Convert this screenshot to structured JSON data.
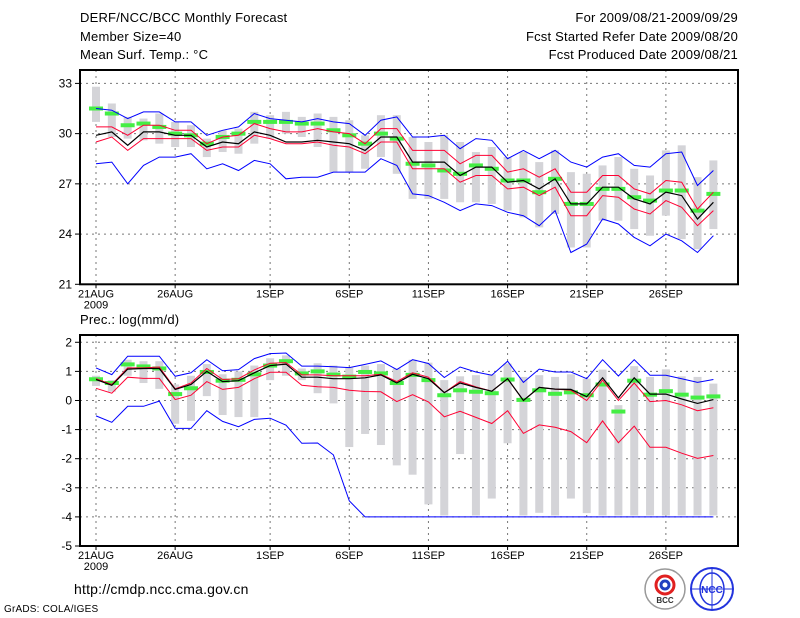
{
  "header": {
    "title": "DERF/NCC/BCC Monthly Forecast",
    "member_size": "Member Size=40",
    "variable": "Mean Surf. Temp.: °C",
    "period": "For 2009/08/21-2009/09/29",
    "started": "Fcst Started Refer Date 2009/08/20",
    "produced": "Fcst Produced Date 2009/08/21"
  },
  "footer": {
    "url": "http://cmdp.ncc.cma.gov.cn",
    "credit": "GrADS: COLA/IGES",
    "logo_bcc": "BCC",
    "logo_ncc": "NCC"
  },
  "colors": {
    "max_min": "#0000ff",
    "spread": "#ff0033",
    "mean": "#000000",
    "obs": "#44ee44",
    "box": "#d4d4d8"
  },
  "chart_data": [
    {
      "type": "line",
      "title": "Mean Surf. Temp.: °C",
      "ylabel": "",
      "ylim": [
        21,
        33
      ],
      "yticks": [
        "21",
        "24",
        "27",
        "30",
        "33"
      ],
      "ytick_values": [
        21,
        24,
        27,
        30,
        33
      ],
      "xtick_days": [
        0,
        5,
        11,
        16,
        21,
        26,
        31,
        36
      ],
      "xtick_labels": [
        "21AUG",
        "26AUG",
        "1SEP",
        "6SEP",
        "11SEP",
        "16SEP",
        "21SEP",
        "26SEP"
      ],
      "xyear": "2009",
      "n_days": 40,
      "grid": true,
      "series": [
        {
          "name": "box_low",
          "values": [
            30.7,
            29.8,
            29.7,
            29.6,
            29.4,
            29.2,
            29.2,
            28.6,
            28.9,
            28.8,
            29.4,
            29.7,
            30.0,
            29.8,
            29.2,
            27.7,
            27.7,
            27.9,
            28.6,
            27.6,
            26.1,
            26.1,
            26.1,
            25.9,
            25.9,
            25.8,
            25.4,
            25.0,
            24.4,
            25.2,
            23.2,
            23.2,
            24.8,
            24.8,
            24.3,
            23.9,
            25.1,
            23.7,
            23.1,
            24.3
          ]
        },
        {
          "name": "box_high",
          "values": [
            32.8,
            31.8,
            31.0,
            30.9,
            31.2,
            30.7,
            30.5,
            29.7,
            30.2,
            30.3,
            31.3,
            31.1,
            31.3,
            31.0,
            31.2,
            31.0,
            30.8,
            29.9,
            31.1,
            31.1,
            29.8,
            29.5,
            29.9,
            29.5,
            28.9,
            29.2,
            28.6,
            28.9,
            28.3,
            29.0,
            27.7,
            27.6,
            28.1,
            28.6,
            27.9,
            27.5,
            29.0,
            29.3,
            27.4,
            28.4
          ]
        },
        {
          "name": "max",
          "values": [
            31.5,
            31.4,
            30.9,
            31.3,
            31.3,
            30.7,
            30.7,
            29.9,
            30.2,
            30.4,
            31.2,
            30.9,
            30.8,
            30.7,
            30.9,
            30.7,
            30.6,
            29.9,
            30.8,
            31.0,
            29.8,
            29.8,
            29.9,
            29.1,
            29.7,
            29.6,
            28.5,
            29.0,
            28.5,
            29.0,
            28.3,
            28.0,
            28.6,
            28.8,
            28.1,
            28.0,
            28.8,
            28.9,
            26.9,
            27.8
          ]
        },
        {
          "name": "upper",
          "values": [
            30.4,
            30.4,
            29.9,
            30.5,
            30.5,
            30.2,
            30.2,
            29.4,
            29.8,
            29.9,
            30.6,
            30.3,
            30.1,
            30.1,
            30.3,
            30.1,
            30.0,
            29.4,
            30.3,
            30.3,
            29.0,
            29.0,
            29.0,
            28.2,
            28.7,
            28.7,
            27.7,
            27.9,
            27.4,
            27.9,
            26.5,
            26.5,
            27.5,
            27.5,
            26.7,
            26.4,
            27.2,
            27.1,
            25.5,
            26.5
          ]
        },
        {
          "name": "mean",
          "values": [
            29.9,
            30.1,
            29.3,
            30.1,
            30.1,
            29.9,
            29.9,
            29.2,
            29.5,
            29.4,
            30.1,
            29.9,
            29.5,
            29.5,
            29.6,
            29.5,
            29.4,
            29.0,
            29.8,
            29.8,
            28.3,
            28.3,
            28.3,
            27.5,
            28.0,
            28.0,
            27.1,
            27.2,
            26.7,
            27.3,
            25.8,
            25.8,
            26.8,
            26.8,
            26.1,
            25.8,
            26.5,
            26.3,
            24.9,
            25.9
          ]
        },
        {
          "name": "lower",
          "values": [
            29.5,
            29.8,
            29.0,
            29.7,
            29.7,
            29.7,
            29.7,
            29.0,
            29.2,
            29.2,
            29.9,
            29.7,
            29.4,
            29.4,
            29.5,
            29.3,
            29.2,
            28.8,
            29.5,
            29.5,
            27.9,
            27.9,
            27.9,
            27.1,
            27.5,
            27.5,
            26.7,
            26.8,
            26.3,
            26.8,
            25.1,
            25.1,
            26.3,
            26.2,
            25.5,
            25.2,
            26.0,
            25.6,
            24.5,
            25.4
          ]
        },
        {
          "name": "min",
          "values": [
            28.2,
            28.3,
            27.0,
            28.1,
            28.6,
            28.6,
            28.8,
            27.9,
            28.2,
            27.8,
            28.4,
            28.2,
            27.3,
            27.4,
            27.4,
            27.7,
            27.7,
            27.7,
            28.5,
            28.1,
            26.4,
            26.3,
            25.9,
            25.4,
            25.8,
            25.7,
            25.3,
            25.1,
            24.5,
            25.4,
            22.9,
            23.4,
            24.9,
            24.6,
            23.8,
            23.3,
            24.0,
            23.6,
            22.9,
            23.9
          ]
        },
        {
          "name": "obs_marker",
          "values": [
            31.5,
            31.2,
            30.5,
            30.6,
            30.4,
            30.0,
            29.9,
            29.4,
            29.8,
            30.0,
            30.7,
            30.7,
            30.7,
            30.6,
            30.6,
            30.2,
            29.9,
            29.4,
            30.0,
            29.7,
            28.2,
            28.1,
            27.8,
            27.6,
            28.1,
            27.9,
            27.2,
            27.2,
            26.5,
            27.3,
            25.8,
            25.8,
            26.7,
            26.7,
            26.2,
            26.0,
            26.6,
            26.6,
            25.4,
            26.4
          ]
        }
      ]
    },
    {
      "type": "line",
      "title": "Prec.: log(mm/d)",
      "ylabel": "",
      "ylim": [
        -5,
        2
      ],
      "yticks": [
        "-5",
        "-4",
        "-3",
        "-2",
        "-1",
        "0",
        "1",
        "2"
      ],
      "ytick_values": [
        -5,
        -4,
        -3,
        -2,
        -1,
        0,
        1,
        2
      ],
      "xtick_days": [
        0,
        5,
        11,
        16,
        21,
        26,
        31,
        36
      ],
      "xtick_labels": [
        "21AUG",
        "26AUG",
        "1SEP",
        "6SEP",
        "11SEP",
        "16SEP",
        "21SEP",
        "26SEP"
      ],
      "xyear": "2009",
      "n_days": 40,
      "grid": true,
      "series": [
        {
          "name": "box_low",
          "values": [
            0.5,
            0.3,
            0.85,
            0.6,
            0.4,
            -0.8,
            -0.7,
            0.15,
            -0.5,
            -0.57,
            -0.57,
            0.7,
            0.85,
            0.7,
            0.25,
            -0.1,
            -1.6,
            -1.15,
            -1.53,
            -2.23,
            -2.55,
            -3.57,
            -3.95,
            -1.84,
            -3.95,
            -3.37,
            -1.47,
            -3.95,
            -3.86,
            -3.95,
            -3.37,
            -3.87,
            -3.95,
            -3.95,
            -3.95,
            -3.95,
            -3.95,
            -3.95,
            -3.95,
            -3.95
          ]
        },
        {
          "name": "box_high",
          "values": [
            0.85,
            0.7,
            1.4,
            1.35,
            1.35,
            0.55,
            0.85,
            1.25,
            0.9,
            1.0,
            1.2,
            1.45,
            1.55,
            1.1,
            1.28,
            1.2,
            1.15,
            1.2,
            1.25,
            1.1,
            1.4,
            1.3,
            0.7,
            0.83,
            0.87,
            0.9,
            1.27,
            0.81,
            0.87,
            0.81,
            0.9,
            0.75,
            1.06,
            -0.16,
            1.18,
            0.81,
            1.07,
            0.83,
            0.81,
            0.58
          ]
        },
        {
          "name": "max",
          "values": [
            1.12,
            0.89,
            1.52,
            1.52,
            1.52,
            0.83,
            0.95,
            1.4,
            1.02,
            1.06,
            1.44,
            1.61,
            1.63,
            1.18,
            1.18,
            1.16,
            1.13,
            1.24,
            1.36,
            1.06,
            1.4,
            1.27,
            0.79,
            1.15,
            0.98,
            0.87,
            1.35,
            0.62,
            1.08,
            0.98,
            0.98,
            0.75,
            1.4,
            0.84,
            1.4,
            0.87,
            0.87,
            0.75,
            0.62,
            0.72
          ]
        },
        {
          "name": "upper",
          "values": [
            0.75,
            0.55,
            1.12,
            1.12,
            1.15,
            0.4,
            0.6,
            1.1,
            0.72,
            0.75,
            1.05,
            1.28,
            1.3,
            0.88,
            0.88,
            0.85,
            0.85,
            0.85,
            0.9,
            0.65,
            0.95,
            0.8,
            0.27,
            0.65,
            0.47,
            0.32,
            0.75,
            0.0,
            0.45,
            0.39,
            0.35,
            0.0,
            0.7,
            0.0,
            0.6,
            -0.04,
            0.0,
            -0.15,
            -0.35,
            -0.25
          ]
        },
        {
          "name": "mean",
          "values": [
            0.72,
            0.52,
            1.08,
            1.1,
            1.1,
            0.38,
            0.55,
            1.0,
            0.65,
            0.68,
            0.95,
            1.2,
            1.25,
            0.8,
            0.8,
            0.75,
            0.75,
            0.78,
            0.88,
            0.6,
            0.9,
            0.75,
            0.27,
            0.6,
            0.45,
            0.32,
            0.75,
            0.0,
            0.45,
            0.39,
            0.38,
            0.13,
            0.78,
            0.09,
            0.78,
            0.22,
            0.22,
            0.05,
            -0.1,
            0.03
          ]
        },
        {
          "name": "lower",
          "values": [
            0.42,
            0.25,
            0.8,
            0.76,
            0.76,
            0.03,
            0.18,
            0.65,
            0.38,
            0.45,
            0.75,
            0.97,
            0.97,
            0.52,
            0.47,
            0.45,
            0.35,
            0.31,
            0.3,
            -0.04,
            0.2,
            -0.05,
            -0.56,
            -0.37,
            -0.58,
            -0.79,
            -0.35,
            -1.13,
            -0.84,
            -0.92,
            -1.07,
            -1.45,
            -0.7,
            -1.45,
            -0.88,
            -1.61,
            -1.61,
            -1.81,
            -1.99,
            -1.89
          ]
        },
        {
          "name": "min",
          "values": [
            -0.53,
            -0.75,
            -0.2,
            -0.2,
            -0.02,
            -0.96,
            -0.96,
            -0.35,
            -0.72,
            -0.9,
            -0.65,
            -0.61,
            -0.85,
            -1.47,
            -1.46,
            -1.87,
            -3.45,
            -4,
            -4,
            -4,
            -4,
            -4,
            -4,
            -4,
            -4,
            -4,
            -4,
            -4,
            -4,
            -4,
            -4,
            -4,
            -4,
            -4,
            -4,
            -4,
            -4,
            -4,
            -4,
            -4
          ]
        },
        {
          "name": "obs_marker",
          "values": [
            0.73,
            0.6,
            1.24,
            1.17,
            1.1,
            0.22,
            0.42,
            0.98,
            0.68,
            0.71,
            0.9,
            1.2,
            1.35,
            0.93,
            1.0,
            0.89,
            0.82,
            0.98,
            0.93,
            0.6,
            0.88,
            0.7,
            0.18,
            0.35,
            0.3,
            0.25,
            0.72,
            0.02,
            0.35,
            0.23,
            0.28,
            0.18,
            0.55,
            -0.38,
            0.68,
            0.2,
            0.32,
            0.2,
            0.1,
            0.14
          ]
        }
      ]
    }
  ]
}
